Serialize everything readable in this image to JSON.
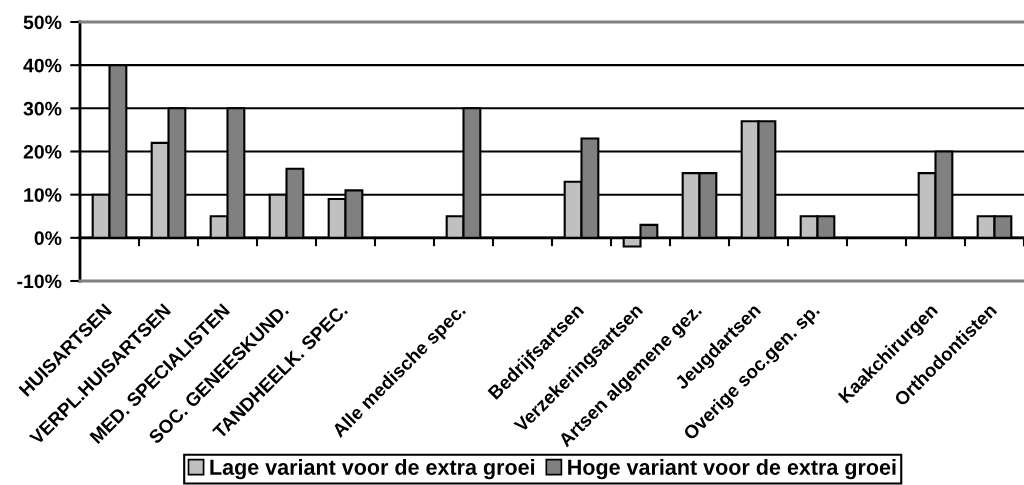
{
  "chart_data": {
    "type": "bar",
    "categories": [
      "HUISARTSEN",
      "VERPL.HUISARTSEN",
      "MED. SPECIALISTEN",
      "SOC. GENEESKUND.",
      "TANDHEELK. SPEC.",
      null,
      "Alle medische spec.",
      null,
      "Bedrijfsartsen",
      "Verzekeringsartsen",
      "Artsen algemene gez.",
      "Jeugdartsen",
      "Overige soc.gen. sp.",
      null,
      "Kaakchirurgen",
      "Orthodontisten"
    ],
    "series": [
      {
        "name": "Lage variant voor de extra groei",
        "color": "#c0c0c0",
        "values": [
          10,
          22,
          5,
          10,
          9,
          null,
          5,
          null,
          13,
          -2,
          15,
          27,
          5,
          null,
          15,
          5
        ]
      },
      {
        "name": "Hoge variant voor de extra groei",
        "color": "#808080",
        "values": [
          40,
          30,
          30,
          16,
          11,
          null,
          30,
          null,
          23,
          3,
          15,
          27,
          5,
          null,
          20,
          5
        ]
      }
    ],
    "ylim": [
      -10,
      50
    ],
    "yticks": [
      {
        "value": -10,
        "label": "-10%"
      },
      {
        "value": 0,
        "label": "0%"
      },
      {
        "value": 10,
        "label": "10%"
      },
      {
        "value": 20,
        "label": "20%"
      },
      {
        "value": 30,
        "label": "30%"
      },
      {
        "value": 40,
        "label": "40%"
      },
      {
        "value": 50,
        "label": "50%"
      }
    ],
    "grid": "y",
    "legend": "bottom"
  }
}
